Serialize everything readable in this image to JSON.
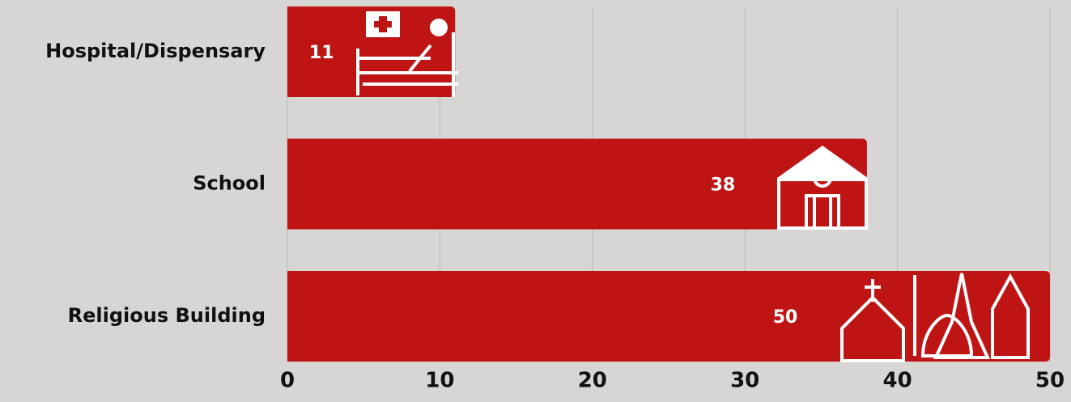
{
  "chart_data": {
    "type": "bar",
    "orientation": "horizontal",
    "categories": [
      "Hospital/Dispensary",
      "School",
      "Religious Building"
    ],
    "values": [
      11,
      38,
      50
    ],
    "color": "#be1414",
    "xlim": [
      0,
      50
    ],
    "xticks": [
      0,
      10,
      20,
      30,
      40,
      50
    ],
    "grid": true
  }
}
